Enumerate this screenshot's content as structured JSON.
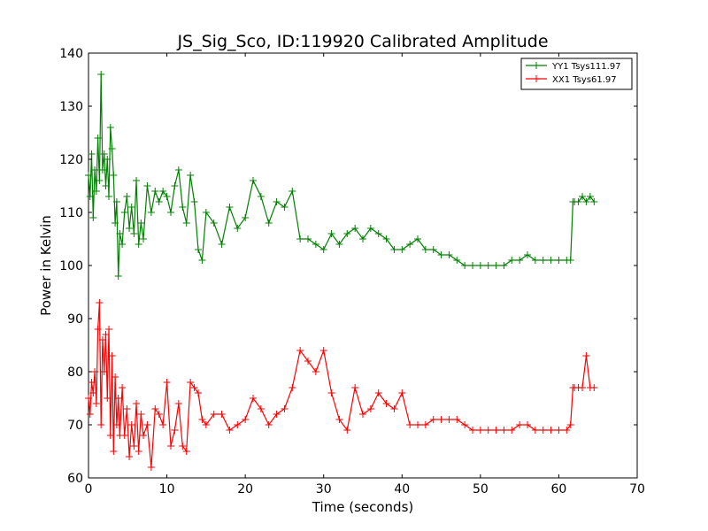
{
  "chart_data": {
    "type": "line",
    "title": "JS_Sig_Sco, ID:119920 Calibrated Amplitude",
    "xlabel": "Time (seconds)",
    "ylabel": "Power in Kelvin",
    "xlim": [
      0,
      70
    ],
    "ylim": [
      60,
      140
    ],
    "xticks": [
      0,
      10,
      20,
      30,
      40,
      50,
      60,
      70
    ],
    "yticks": [
      60,
      70,
      80,
      90,
      100,
      110,
      120,
      130,
      140
    ],
    "grid": false,
    "legend": "top-right",
    "marker": "plus",
    "series": [
      {
        "name": "YY1 Tsys111.97",
        "color": "#008000",
        "x": [
          0.0,
          0.2,
          0.4,
          0.6,
          0.8,
          1.0,
          1.2,
          1.4,
          1.6,
          1.8,
          2.0,
          2.2,
          2.4,
          2.6,
          2.8,
          3.0,
          3.2,
          3.4,
          3.6,
          3.8,
          4.0,
          4.3,
          4.6,
          4.9,
          5.2,
          5.5,
          5.8,
          6.1,
          6.4,
          6.7,
          7.0,
          7.5,
          8.0,
          8.5,
          9.0,
          9.5,
          10.0,
          10.5,
          11.0,
          11.5,
          12.0,
          12.5,
          13.0,
          13.5,
          14.0,
          14.5,
          15.0,
          16.0,
          17.0,
          18.0,
          19.0,
          20.0,
          21.0,
          22.0,
          23.0,
          24.0,
          25.0,
          26.0,
          27.0,
          28.0,
          29.0,
          30.0,
          31.0,
          32.0,
          33.0,
          34.0,
          35.0,
          36.0,
          37.0,
          38.0,
          39.0,
          40.0,
          41.0,
          42.0,
          43.0,
          44.0,
          45.0,
          46.0,
          47.0,
          48.0,
          49.0,
          50.0,
          51.0,
          52.0,
          53.0,
          54.0,
          55.0,
          56.0,
          57.0,
          58.0,
          59.0,
          60.0,
          61.0,
          61.5,
          61.8,
          62.0,
          62.5,
          63.0,
          63.5,
          64.0,
          64.5
        ],
        "y": [
          117,
          113,
          121,
          109,
          118,
          114,
          124,
          116,
          136,
          118,
          121,
          115,
          120,
          113,
          126,
          122,
          117,
          108,
          112,
          98,
          106,
          104,
          110,
          113,
          107,
          111,
          106,
          116,
          104,
          108,
          105,
          115,
          110,
          114,
          112,
          114,
          113,
          110,
          115,
          118,
          111,
          108,
          117,
          112,
          103,
          101,
          110,
          108,
          104,
          111,
          107,
          109,
          116,
          113,
          108,
          112,
          111,
          114,
          105,
          105,
          104,
          103,
          106,
          104,
          106,
          107,
          105,
          107,
          106,
          105,
          103,
          103,
          104,
          105,
          103,
          103,
          102,
          102,
          101,
          100,
          100,
          100,
          100,
          100,
          100,
          101,
          101,
          102,
          101,
          101,
          101,
          101,
          101,
          101,
          112,
          112,
          112,
          113,
          112,
          113,
          112
        ]
      },
      {
        "name": "XX1 Tsys61.97",
        "color": "#ff0000",
        "x": [
          0.0,
          0.2,
          0.4,
          0.6,
          0.8,
          1.0,
          1.2,
          1.4,
          1.6,
          1.8,
          2.0,
          2.2,
          2.4,
          2.6,
          2.8,
          3.0,
          3.2,
          3.4,
          3.6,
          3.8,
          4.0,
          4.3,
          4.6,
          4.9,
          5.2,
          5.5,
          5.8,
          6.1,
          6.4,
          6.7,
          7.0,
          7.5,
          8.0,
          8.5,
          9.0,
          9.5,
          10.0,
          10.5,
          11.0,
          11.5,
          12.0,
          12.5,
          13.0,
          13.5,
          14.0,
          14.5,
          15.0,
          16.0,
          17.0,
          18.0,
          19.0,
          20.0,
          21.0,
          22.0,
          23.0,
          24.0,
          25.0,
          26.0,
          27.0,
          28.0,
          29.0,
          30.0,
          31.0,
          32.0,
          33.0,
          34.0,
          35.0,
          36.0,
          37.0,
          38.0,
          39.0,
          40.0,
          41.0,
          42.0,
          43.0,
          44.0,
          45.0,
          46.0,
          47.0,
          48.0,
          49.0,
          50.0,
          51.0,
          52.0,
          53.0,
          54.0,
          55.0,
          56.0,
          57.0,
          58.0,
          59.0,
          60.0,
          61.0,
          61.5,
          61.8,
          62.0,
          62.5,
          63.0,
          63.5,
          64.0,
          64.5
        ],
        "y": [
          75,
          72,
          78,
          76,
          80,
          74,
          88,
          93,
          70,
          86,
          80,
          87,
          75,
          88,
          68,
          83,
          65,
          79,
          70,
          75,
          68,
          77,
          68,
          73,
          64,
          70,
          66,
          74,
          65,
          72,
          68,
          70,
          62,
          73,
          72,
          70,
          78,
          66,
          69,
          74,
          66,
          65,
          78,
          77,
          76,
          71,
          70,
          72,
          72,
          69,
          70,
          71,
          75,
          73,
          70,
          72,
          73,
          77,
          84,
          82,
          80,
          84,
          76,
          71,
          69,
          77,
          72,
          73,
          76,
          74,
          73,
          76,
          70,
          70,
          70,
          71,
          71,
          71,
          71,
          70,
          69,
          69,
          69,
          69,
          69,
          69,
          70,
          70,
          69,
          69,
          69,
          69,
          69,
          70,
          77,
          77,
          77,
          77,
          83,
          77,
          77
        ]
      }
    ]
  }
}
